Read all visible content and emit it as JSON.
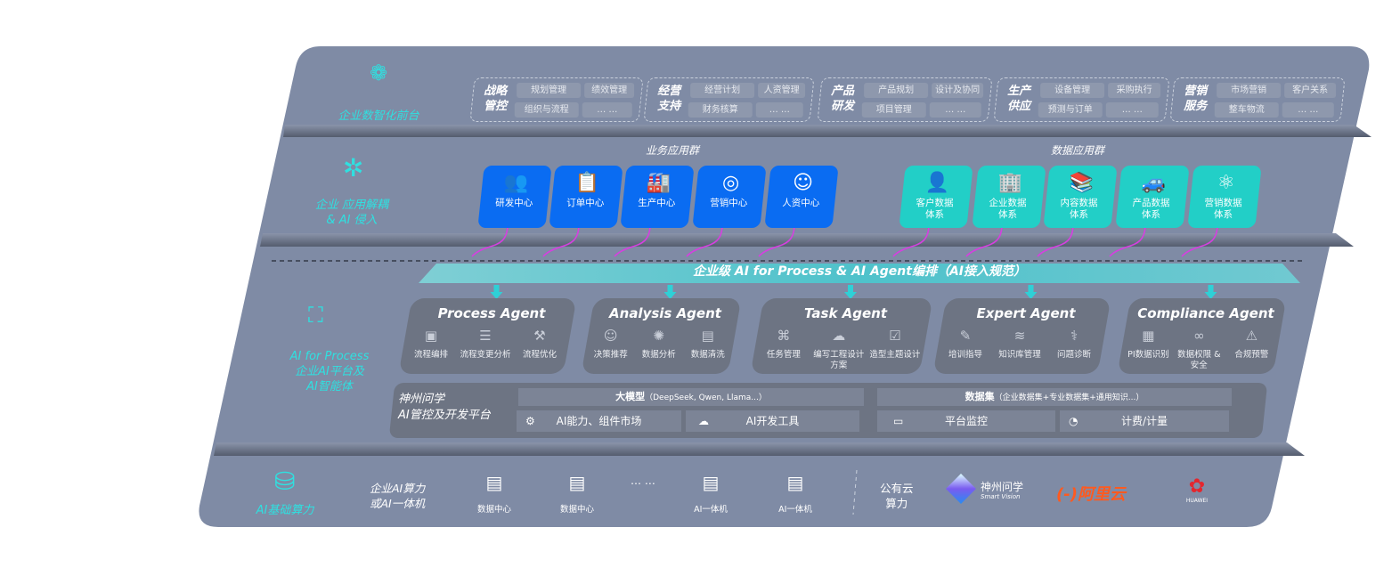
{
  "colors": {
    "panel": "#7f8ba5",
    "blue_tile": "#0a6cf2",
    "teal_tile": "#22cfc7",
    "agent_box": "#6d7483",
    "accent_cyan": "#2fe0e0",
    "arrow_magenta": "#d63fe0"
  },
  "layer1": {
    "label": "企业数智化前台",
    "icon": "brain-icon",
    "groups": [
      {
        "title": [
          "战略",
          "管控"
        ],
        "chips": [
          "规划管理",
          "绩效管理",
          "组织与流程",
          "… …"
        ]
      },
      {
        "title": [
          "经营",
          "支持"
        ],
        "chips": [
          "经营计划",
          "人资管理",
          "财务核算",
          "… …"
        ]
      },
      {
        "title": [
          "产品",
          "研发"
        ],
        "chips": [
          "产品规划",
          "设计及协同",
          "项目管理",
          "… …"
        ]
      },
      {
        "title": [
          "生产",
          "供应"
        ],
        "chips": [
          "设备管理",
          "采购执行",
          "预测与订单",
          "… …"
        ]
      },
      {
        "title": [
          "营销",
          "服务"
        ],
        "chips": [
          "市场营销",
          "客户关系",
          "整车物流",
          "… …"
        ]
      }
    ]
  },
  "layer2": {
    "label": [
      "企业 应用解耦",
      "& AI 侵入"
    ],
    "icon": "molecule-icon",
    "business_title": "业务应用群",
    "data_title": "数据应用群",
    "business_apps": [
      {
        "label": "研发中心",
        "icon": "users-icon"
      },
      {
        "label": "订单中心",
        "icon": "clipboard-icon"
      },
      {
        "label": "生产中心",
        "icon": "factory-icon"
      },
      {
        "label": "营销中心",
        "icon": "target-icon"
      },
      {
        "label": "人资中心",
        "icon": "person-icon"
      }
    ],
    "data_apps": [
      {
        "label": [
          "客户数据",
          "体系"
        ],
        "icon": "user-icon"
      },
      {
        "label": [
          "企业数据",
          "体系"
        ],
        "icon": "building-icon"
      },
      {
        "label": [
          "内容数据",
          "体系"
        ],
        "icon": "books-icon"
      },
      {
        "label": [
          "产品数据",
          "体系"
        ],
        "icon": "car-icon"
      },
      {
        "label": [
          "营销数据",
          "体系"
        ],
        "icon": "atom-icon"
      }
    ]
  },
  "banner": "企业级 AI for Process & AI Agent编排（AI接入规范）",
  "layer3": {
    "label": [
      "AI for Process",
      "企业AI平台及",
      "AI智能体"
    ],
    "icon": "face-scan-icon",
    "agents": [
      {
        "title": "Process Agent",
        "features": [
          {
            "label": "流程编排",
            "icon": "chart-icon"
          },
          {
            "label": "流程变更分析",
            "icon": "list-icon"
          },
          {
            "label": "流程优化",
            "icon": "tools-icon"
          }
        ]
      },
      {
        "title": "Analysis Agent",
        "features": [
          {
            "label": "决策推荐",
            "icon": "head-icon"
          },
          {
            "label": "数据分析",
            "icon": "gear-atom-icon"
          },
          {
            "label": "数据清洗",
            "icon": "doc-icon"
          }
        ]
      },
      {
        "title": "Task Agent",
        "features": [
          {
            "label": "任务管理",
            "icon": "network-icon"
          },
          {
            "label": "编写工程设计方案",
            "icon": "cloud-icon"
          },
          {
            "label": "造型主题设计",
            "icon": "checklist-icon"
          }
        ]
      },
      {
        "title": "Expert Agent",
        "features": [
          {
            "label": "培训指导",
            "icon": "pencil-icon"
          },
          {
            "label": "知识库管理",
            "icon": "layers-icon"
          },
          {
            "label": "问题诊断",
            "icon": "diagnose-icon"
          }
        ]
      },
      {
        "title": "Compliance Agent",
        "features": [
          {
            "label": "PI数据识别",
            "icon": "id-icon"
          },
          {
            "label": "数据权限 & 安全",
            "icon": "link-icon"
          },
          {
            "label": "合规预警",
            "icon": "alert-icon"
          }
        ]
      }
    ],
    "platform": {
      "title": [
        "神州问学",
        "AI管控及开发平台"
      ],
      "model_bar": {
        "main": "大模型",
        "sub": "（DeepSeek, Qwen, Llama...）"
      },
      "dataset_bar": {
        "main": "数据集",
        "sub": "（企业数据集+专业数据集+通用知识...）"
      },
      "items": [
        "AI能力、组件市场",
        "AI开发工具",
        "平台监控",
        "计费/计量"
      ]
    }
  },
  "layer4": {
    "label": "AI基础算力",
    "icon": "database-icon",
    "enterprise_label": [
      "企业AI算力",
      "或AI一体机"
    ],
    "servers": [
      "数据中心",
      "数据中心",
      "AI一体机",
      "AI一体机"
    ],
    "ellipsis": "… …",
    "cloud_label": [
      "公有云",
      "算力"
    ],
    "vendors": [
      {
        "name": "神州问学",
        "sub": "Smart Vision"
      },
      {
        "name": "阿里云",
        "mark": "(-)"
      },
      {
        "name": "HUAWEI"
      }
    ]
  }
}
